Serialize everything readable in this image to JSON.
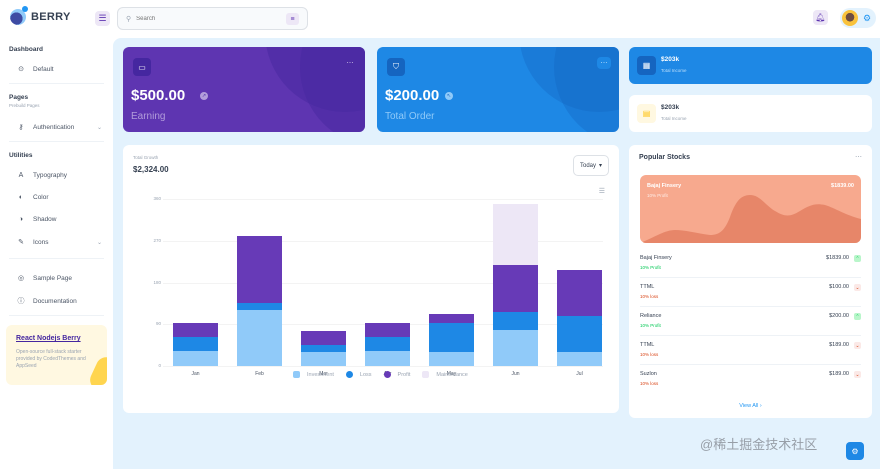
{
  "header": {
    "brand": "BERRY",
    "search_placeholder": "Search",
    "icons": {
      "menu": "menu-icon",
      "search": "search-icon",
      "filter": "sliders-icon",
      "bell": "bell-icon",
      "gear": "gear-icon"
    }
  },
  "sidebar": {
    "sections": [
      {
        "title": "Dashboard",
        "items": [
          {
            "label": "Default",
            "icon": "dashboard-icon"
          }
        ]
      },
      {
        "title": "Pages",
        "subtitle": "Prebuild Pages",
        "items": [
          {
            "label": "Authentication",
            "icon": "key-icon",
            "has_children": true
          }
        ]
      },
      {
        "title": "Utilities",
        "items": [
          {
            "label": "Typography",
            "icon": "typography-icon"
          },
          {
            "label": "Color",
            "icon": "palette-icon"
          },
          {
            "label": "Shadow",
            "icon": "shadow-icon"
          },
          {
            "label": "Icons",
            "icon": "pencil-icon",
            "has_children": true
          }
        ]
      },
      {
        "title": "",
        "items": [
          {
            "label": "Sample Page",
            "icon": "brand-chrome-icon"
          },
          {
            "label": "Documentation",
            "icon": "help-icon"
          }
        ]
      }
    ],
    "promo": {
      "title": "React Nodejs Berry",
      "text": "Open-source full-stack starter provided by CodedThemes and AppSeed"
    }
  },
  "cards": {
    "earning": {
      "amount": "$500.00",
      "label": "Earning",
      "color": "#5e35b1"
    },
    "order": {
      "amount": "$200.00",
      "label": "Total Order",
      "color": "#1e88e5"
    },
    "income_dark": {
      "value": "$203k",
      "label": "Total Income"
    },
    "income_light": {
      "value": "$203k",
      "label": "Total Income"
    }
  },
  "growth": {
    "subtitle": "Total Growth",
    "value": "$2,324.00",
    "period": "Today"
  },
  "chart_data": {
    "type": "bar",
    "stacked": true,
    "title": "Total Growth",
    "categories": [
      "Jan",
      "Feb",
      "Mar",
      "Apr",
      "May",
      "Jun",
      "Jul"
    ],
    "series": [
      {
        "name": "Investment",
        "color": "#90caf9",
        "values": [
          32,
          121,
          30,
          32,
          30,
          78,
          30
        ]
      },
      {
        "name": "Loss",
        "color": "#1e88e5",
        "values": [
          30,
          15,
          15,
          30,
          63,
          38,
          78
        ]
      },
      {
        "name": "Profit",
        "color": "#673ab7",
        "values": [
          31,
          144,
          30,
          31,
          19,
          102,
          99
        ]
      },
      {
        "name": "Maintenance",
        "color": "#ede7f6",
        "values": [
          0,
          0,
          0,
          0,
          0,
          131,
          0
        ]
      }
    ],
    "yticks": [
      "360",
      "270",
      "180",
      "90",
      "0"
    ],
    "ylim": [
      0,
      360
    ],
    "xlabel": "",
    "ylabel": "",
    "legend_position": "bottom",
    "grid": true
  },
  "stocks": {
    "title": "Popular Stocks",
    "featured": {
      "name": "Bajaj Finsery",
      "change": "10% Profit",
      "price": "$1839.00"
    },
    "rows": [
      {
        "name": "Bajaj Finsery",
        "change": "10% Profit",
        "price": "$1839.00",
        "trend": "up"
      },
      {
        "name": "TTML",
        "change": "10% loss",
        "price": "$100.00",
        "trend": "down"
      },
      {
        "name": "Reliance",
        "change": "10% Profit",
        "price": "$200.00",
        "trend": "up"
      },
      {
        "name": "TTML",
        "change": "10% loss",
        "price": "$189.00",
        "trend": "down"
      },
      {
        "name": "Suzlon",
        "change": "10% loss",
        "price": "$189.00",
        "trend": "down"
      }
    ],
    "view_all": "View All"
  },
  "watermark": "@稀土掘金技术社区"
}
